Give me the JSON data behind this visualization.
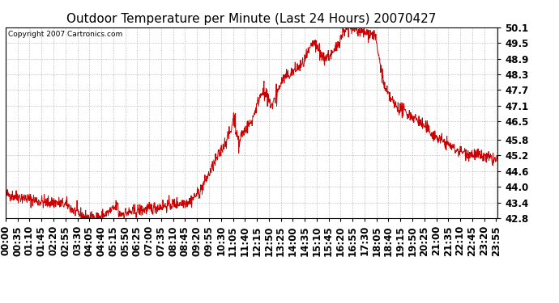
{
  "title": "Outdoor Temperature per Minute (Last 24 Hours) 20070427",
  "copyright": "Copyright 2007 Cartronics.com",
  "line_color": "#cc0000",
  "background_color": "#ffffff",
  "plot_bg_color": "#ffffff",
  "grid_color": "#aaaaaa",
  "ylim": [
    42.8,
    50.1
  ],
  "yticks": [
    42.8,
    43.4,
    44.0,
    44.6,
    45.2,
    45.8,
    46.5,
    47.1,
    47.7,
    48.3,
    48.9,
    49.5,
    50.1
  ],
  "xtick_labels": [
    "00:00",
    "00:35",
    "01:10",
    "01:45",
    "02:20",
    "02:55",
    "03:30",
    "04:05",
    "04:40",
    "05:15",
    "05:50",
    "06:25",
    "07:00",
    "07:35",
    "08:10",
    "08:45",
    "09:20",
    "09:55",
    "10:30",
    "11:05",
    "11:40",
    "12:15",
    "12:50",
    "13:25",
    "14:00",
    "14:35",
    "15:10",
    "15:45",
    "16:20",
    "16:55",
    "17:30",
    "18:05",
    "18:40",
    "19:15",
    "19:50",
    "20:25",
    "21:00",
    "21:35",
    "22:10",
    "22:45",
    "23:20",
    "23:55"
  ],
  "title_fontsize": 11,
  "copyright_fontsize": 6.5,
  "tick_fontsize": 8.5,
  "ytick_fontweight": "bold"
}
